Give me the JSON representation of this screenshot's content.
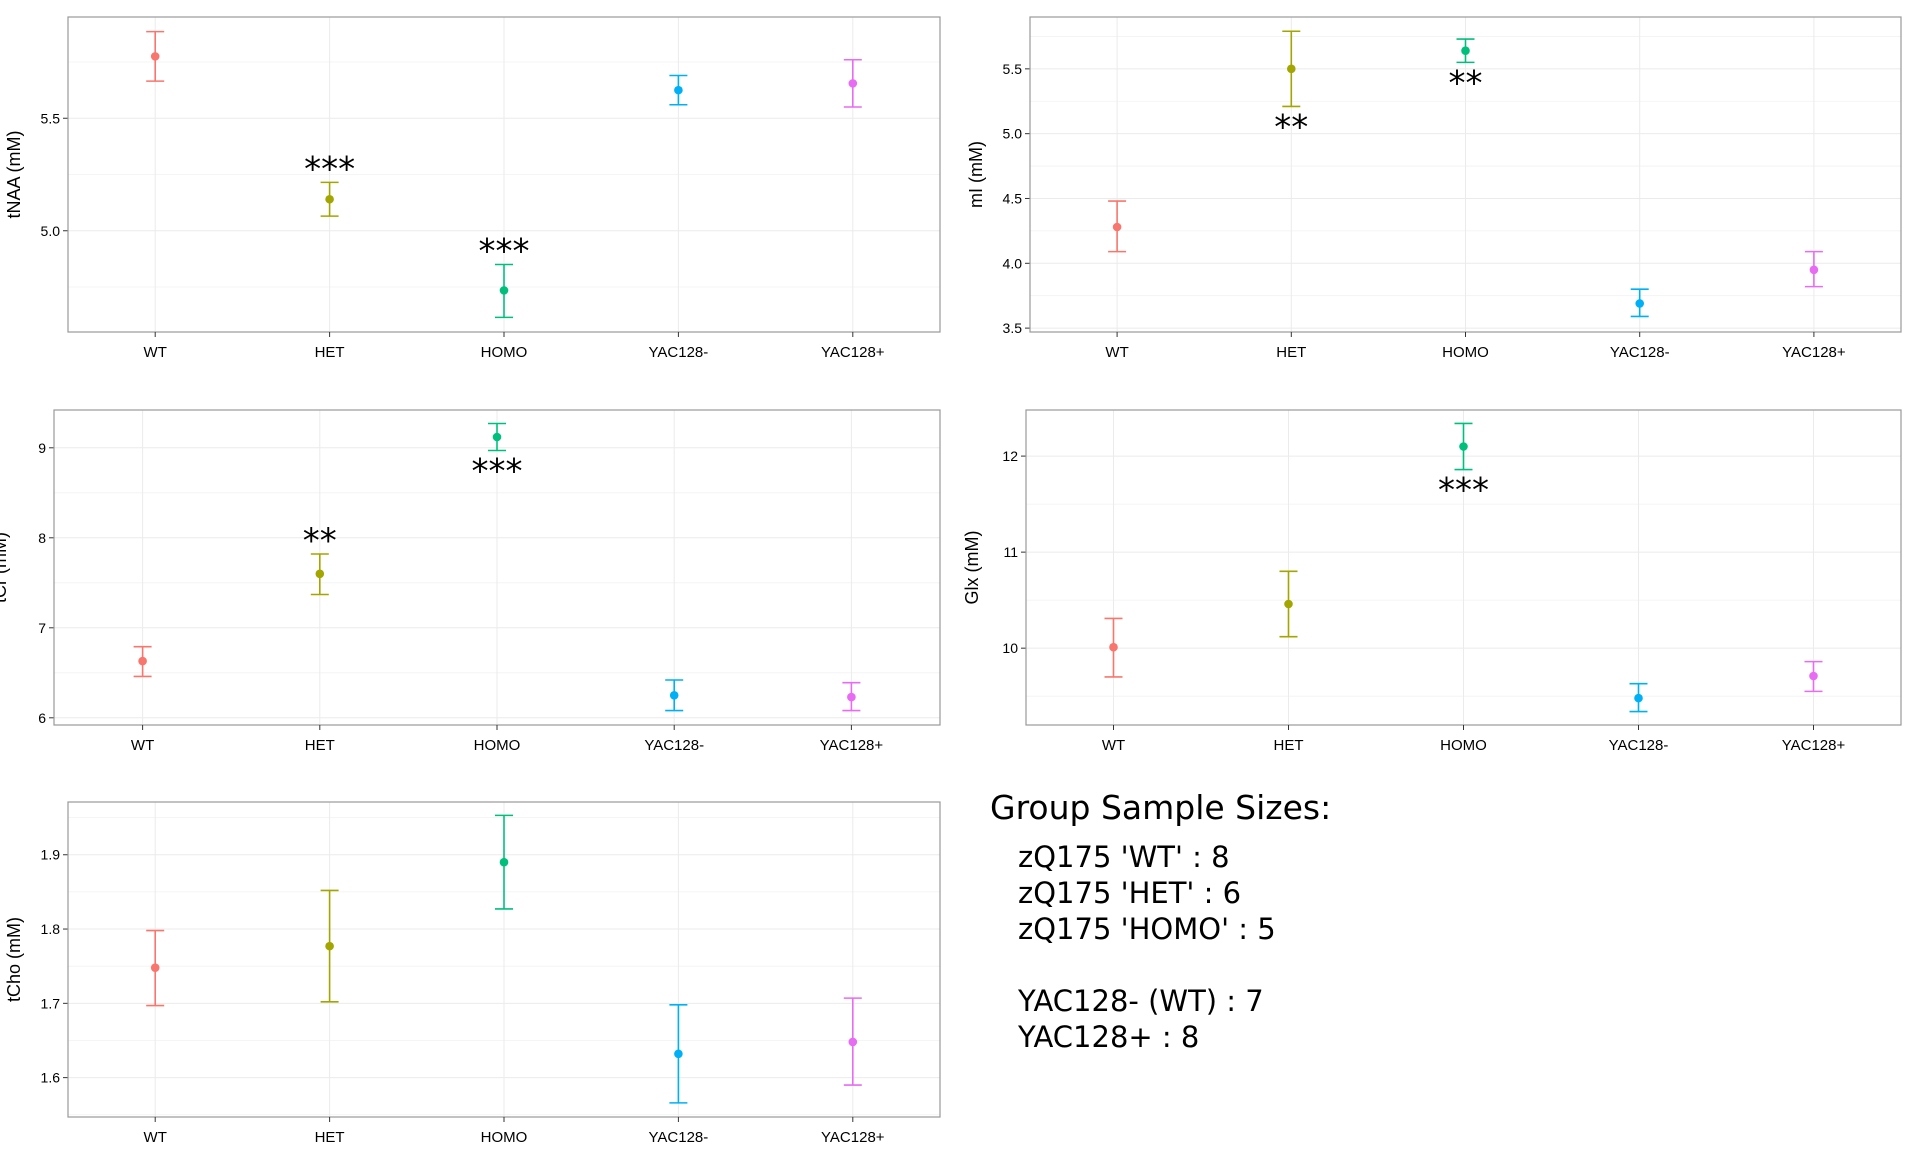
{
  "chart_data": [
    {
      "type": "errorbar",
      "ylabel": "tNAA (mM)",
      "categories": [
        "WT",
        "HET",
        "HOMO",
        "YAC128-",
        "YAC128+"
      ],
      "means": [
        5.775,
        5.14,
        4.735,
        5.625,
        5.655
      ],
      "lower": [
        5.665,
        5.065,
        4.615,
        5.56,
        5.55
      ],
      "upper": [
        5.885,
        5.215,
        4.85,
        5.69,
        5.76
      ],
      "significance": [
        "",
        "***",
        "***",
        "",
        ""
      ],
      "sig_position": [
        "",
        "above",
        "above",
        "",
        ""
      ],
      "ylim": [
        4.55,
        5.95
      ],
      "yticks": [
        5.0,
        5.5
      ],
      "ytick_labels": [
        "5.0",
        "5.5"
      ]
    },
    {
      "type": "errorbar",
      "ylabel": "mI (mM)",
      "categories": [
        "WT",
        "HET",
        "HOMO",
        "YAC128-",
        "YAC128+"
      ],
      "means": [
        4.28,
        5.5,
        5.64,
        3.69,
        3.95
      ],
      "lower": [
        4.09,
        5.21,
        5.55,
        3.59,
        3.82
      ],
      "upper": [
        4.48,
        5.79,
        5.73,
        3.8,
        4.09
      ],
      "significance": [
        "",
        "**",
        "**",
        "",
        ""
      ],
      "sig_position": [
        "",
        "below",
        "below",
        "",
        ""
      ],
      "ylim": [
        3.47,
        5.9
      ],
      "yticks": [
        3.5,
        4.0,
        4.5,
        5.0,
        5.5
      ],
      "ytick_labels": [
        "3.5",
        "4.0",
        "4.5",
        "5.0",
        "5.5"
      ]
    },
    {
      "type": "errorbar",
      "ylabel": "tCr (mM)",
      "categories": [
        "WT",
        "HET",
        "HOMO",
        "YAC128-",
        "YAC128+"
      ],
      "means": [
        6.63,
        7.6,
        9.12,
        6.25,
        6.23
      ],
      "lower": [
        6.46,
        7.37,
        8.97,
        6.08,
        6.08
      ],
      "upper": [
        6.79,
        7.82,
        9.27,
        6.42,
        6.39
      ],
      "significance": [
        "",
        "**",
        "***",
        "",
        ""
      ],
      "sig_position": [
        "",
        "above",
        "below",
        "",
        ""
      ],
      "ylim": [
        5.92,
        9.42
      ],
      "yticks": [
        6,
        7,
        8,
        9
      ],
      "ytick_labels": [
        "6",
        "7",
        "8",
        "9"
      ]
    },
    {
      "type": "errorbar",
      "ylabel": "Glx (mM)",
      "categories": [
        "WT",
        "HET",
        "HOMO",
        "YAC128-",
        "YAC128+"
      ],
      "means": [
        10.01,
        10.46,
        12.1,
        9.48,
        9.71
      ],
      "lower": [
        9.7,
        10.12,
        11.86,
        9.34,
        9.55
      ],
      "upper": [
        10.31,
        10.8,
        12.34,
        9.63,
        9.86
      ],
      "significance": [
        "",
        "",
        "***",
        "",
        ""
      ],
      "sig_position": [
        "",
        "",
        "below",
        "",
        ""
      ],
      "ylim": [
        9.2,
        12.48
      ],
      "yticks": [
        10,
        11,
        12
      ],
      "ytick_labels": [
        "10",
        "11",
        "12"
      ]
    },
    {
      "type": "errorbar",
      "ylabel": "tCho (mM)",
      "categories": [
        "WT",
        "HET",
        "HOMO",
        "YAC128-",
        "YAC128+"
      ],
      "means": [
        1.748,
        1.777,
        1.89,
        1.632,
        1.648
      ],
      "lower": [
        1.697,
        1.702,
        1.827,
        1.566,
        1.59
      ],
      "upper": [
        1.798,
        1.852,
        1.953,
        1.698,
        1.707
      ],
      "significance": [
        "",
        "",
        "",
        "",
        ""
      ],
      "sig_position": [
        "",
        "",
        "",
        "",
        ""
      ],
      "ylim": [
        1.547,
        1.971
      ],
      "yticks": [
        1.6,
        1.7,
        1.8,
        1.9
      ],
      "ytick_labels": [
        "1.6",
        "1.7",
        "1.8",
        "1.9"
      ]
    }
  ],
  "colors": {
    "WT": "#F8766D",
    "HET": "#A3A500",
    "HOMO": "#00BF7D",
    "YAC128-": "#00B0F6",
    "YAC128+": "#E76BF3",
    "panel_bg": "#FFFFFF",
    "grid": "#EBEBEB",
    "panel_border": "#999999",
    "axis_text": "#000000"
  },
  "legend": {
    "title": "Group Sample Sizes:",
    "lines": [
      "zQ175 'WT' : 8",
      "zQ175 'HET' : 6",
      "zQ175 'HOMO' : 5",
      "",
      "YAC128- (WT) : 7",
      "YAC128+ : 8"
    ]
  }
}
